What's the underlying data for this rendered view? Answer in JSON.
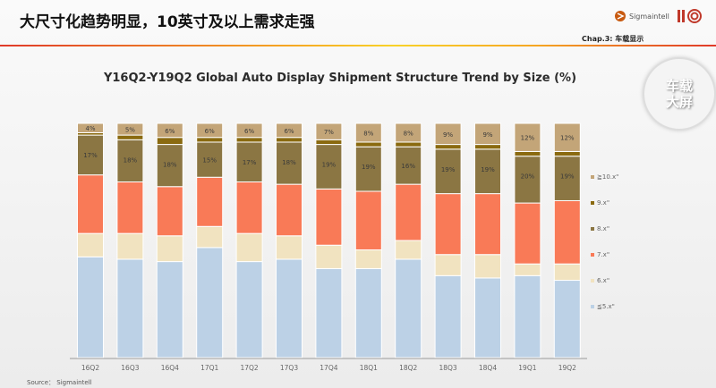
{
  "header": {
    "title": "大尺寸化趋势明显，10英寸及以上需求走强",
    "chapter": "Chap.3: 车载显示",
    "logo_text": "Sigmaintell",
    "badge": [
      "车载",
      "大屏"
    ]
  },
  "source": "Source： Sigmaintell",
  "chart_data": {
    "type": "bar",
    "stacked": true,
    "title": "Y16Q2-Y19Q2 Global Auto Display Shipment Structure Trend by Size (%)",
    "categories": [
      "16Q2",
      "16Q3",
      "16Q4",
      "17Q1",
      "17Q2",
      "17Q3",
      "17Q4",
      "18Q1",
      "18Q2",
      "18Q3",
      "18Q4",
      "19Q1",
      "19Q2"
    ],
    "ylim": [
      0,
      100
    ],
    "legend_position": "right",
    "grid": false,
    "series": [
      {
        "name": "≦5.x\"",
        "color": "#bcd1e6",
        "values": [
          43,
          42,
          41,
          47,
          41,
          42,
          38,
          38,
          42,
          35,
          34,
          35,
          33
        ]
      },
      {
        "name": "6.x\"",
        "color": "#f1e3c0",
        "values": [
          10,
          11,
          11,
          9,
          12,
          10,
          10,
          8,
          8,
          9,
          10,
          5,
          7
        ]
      },
      {
        "name": "7.x\"",
        "color": "#f97a57",
        "values": [
          25,
          22,
          21,
          21,
          22,
          22,
          24,
          25,
          24,
          26,
          26,
          26,
          27
        ]
      },
      {
        "name": "8.x\"",
        "color": "#8b7643",
        "labeled": true,
        "values": [
          17,
          18,
          18,
          15,
          17,
          18,
          19,
          19,
          16,
          19,
          19,
          20,
          19
        ]
      },
      {
        "name": "9.x\"",
        "color": "#8a6a10",
        "values": [
          1,
          2,
          3,
          2,
          2,
          2,
          2,
          2,
          2,
          2,
          2,
          2,
          2
        ]
      },
      {
        "name": "≧10.x\"",
        "color": "#c3a578",
        "labeled": true,
        "values": [
          4,
          5,
          6,
          6,
          6,
          6,
          7,
          8,
          8,
          9,
          9,
          12,
          12
        ]
      }
    ]
  }
}
